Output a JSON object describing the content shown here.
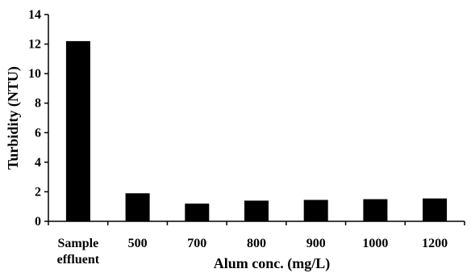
{
  "chart_data": {
    "type": "bar",
    "categories": [
      [
        "Sample",
        "effluent"
      ],
      [
        "500"
      ],
      [
        "700"
      ],
      [
        "800"
      ],
      [
        "900"
      ],
      [
        "1000"
      ],
      [
        "1200"
      ]
    ],
    "values": [
      12.2,
      1.9,
      1.2,
      1.4,
      1.45,
      1.5,
      1.55
    ],
    "ylabel": "Turbidity (NTU)",
    "xlabel": "Alum conc. (mg/L)",
    "ylim": [
      0,
      14
    ],
    "yticks": [
      "0",
      "2",
      "4",
      "6",
      "8",
      "10",
      "12",
      "14"
    ],
    "grid": false,
    "legend": "none",
    "bar_color": "#000000",
    "axis_color": "#000000"
  }
}
